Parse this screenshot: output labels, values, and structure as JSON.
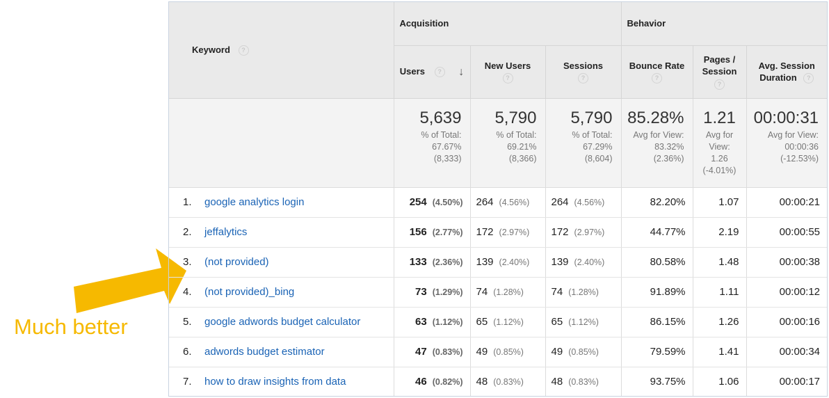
{
  "header": {
    "keyword_label": "Keyword",
    "acquisition_label": "Acquisition",
    "behavior_label": "Behavior",
    "columns": {
      "users": "Users",
      "new_users": "New Users",
      "sessions": "Sessions",
      "bounce_rate": "Bounce Rate",
      "pages_session_line1": "Pages /",
      "pages_session_line2": "Session",
      "duration_line1": "Avg. Session",
      "duration_line2": "Duration"
    },
    "help_glyph": "?",
    "sort_glyph": "↓"
  },
  "totals": {
    "users": {
      "value": "5,639",
      "l1": "% of Total:",
      "l2": "67.67%",
      "l3": "(8,333)"
    },
    "new_users": {
      "value": "5,790",
      "l1": "% of Total:",
      "l2": "69.21%",
      "l3": "(8,366)"
    },
    "sessions": {
      "value": "5,790",
      "l1": "% of Total:",
      "l2": "67.29%",
      "l3": "(8,604)"
    },
    "bounce_rate": {
      "value": "85.28%",
      "l1": "Avg for View:",
      "l2": "83.32%",
      "l3": "(2.36%)"
    },
    "pages_session": {
      "value": "1.21",
      "l1": "Avg for",
      "l2": "View:",
      "l3": "1.26",
      "l4": "(-4.01%)"
    },
    "duration": {
      "value": "00:00:31",
      "l1": "Avg for View:",
      "l2": "00:00:36",
      "l3": "(-12.53%)"
    }
  },
  "rows": [
    {
      "num": "1.",
      "keyword": "google analytics login",
      "users": "254",
      "users_pct": "(4.50%)",
      "new_users": "264",
      "new_users_pct": "(4.56%)",
      "sessions": "264",
      "sessions_pct": "(4.56%)",
      "bounce": "82.20%",
      "pps": "1.07",
      "dur": "00:00:21"
    },
    {
      "num": "2.",
      "keyword": "jeffalytics",
      "users": "156",
      "users_pct": "(2.77%)",
      "new_users": "172",
      "new_users_pct": "(2.97%)",
      "sessions": "172",
      "sessions_pct": "(2.97%)",
      "bounce": "44.77%",
      "pps": "2.19",
      "dur": "00:00:55"
    },
    {
      "num": "3.",
      "keyword": "(not provided)",
      "users": "133",
      "users_pct": "(2.36%)",
      "new_users": "139",
      "new_users_pct": "(2.40%)",
      "sessions": "139",
      "sessions_pct": "(2.40%)",
      "bounce": "80.58%",
      "pps": "1.48",
      "dur": "00:00:38"
    },
    {
      "num": "4.",
      "keyword": "(not provided)_bing",
      "users": "73",
      "users_pct": "(1.29%)",
      "new_users": "74",
      "new_users_pct": "(1.28%)",
      "sessions": "74",
      "sessions_pct": "(1.28%)",
      "bounce": "91.89%",
      "pps": "1.11",
      "dur": "00:00:12"
    },
    {
      "num": "5.",
      "keyword": "google adwords budget calculator",
      "users": "63",
      "users_pct": "(1.12%)",
      "new_users": "65",
      "new_users_pct": "(1.12%)",
      "sessions": "65",
      "sessions_pct": "(1.12%)",
      "bounce": "86.15%",
      "pps": "1.26",
      "dur": "00:00:16"
    },
    {
      "num": "6.",
      "keyword": "adwords budget estimator",
      "users": "47",
      "users_pct": "(0.83%)",
      "new_users": "49",
      "new_users_pct": "(0.85%)",
      "sessions": "49",
      "sessions_pct": "(0.85%)",
      "bounce": "79.59%",
      "pps": "1.41",
      "dur": "00:00:34"
    },
    {
      "num": "7.",
      "keyword": "how to draw insights from data",
      "users": "46",
      "users_pct": "(0.82%)",
      "new_users": "48",
      "new_users_pct": "(0.83%)",
      "sessions": "48",
      "sessions_pct": "(0.83%)",
      "bounce": "93.75%",
      "pps": "1.06",
      "dur": "00:00:17"
    }
  ],
  "annotation": {
    "text": "Much better",
    "color": "#f6b900"
  },
  "colors": {
    "link": "#1a63b5",
    "header_bg": "#eaeaea",
    "totals_bg": "#f3f3f3"
  }
}
